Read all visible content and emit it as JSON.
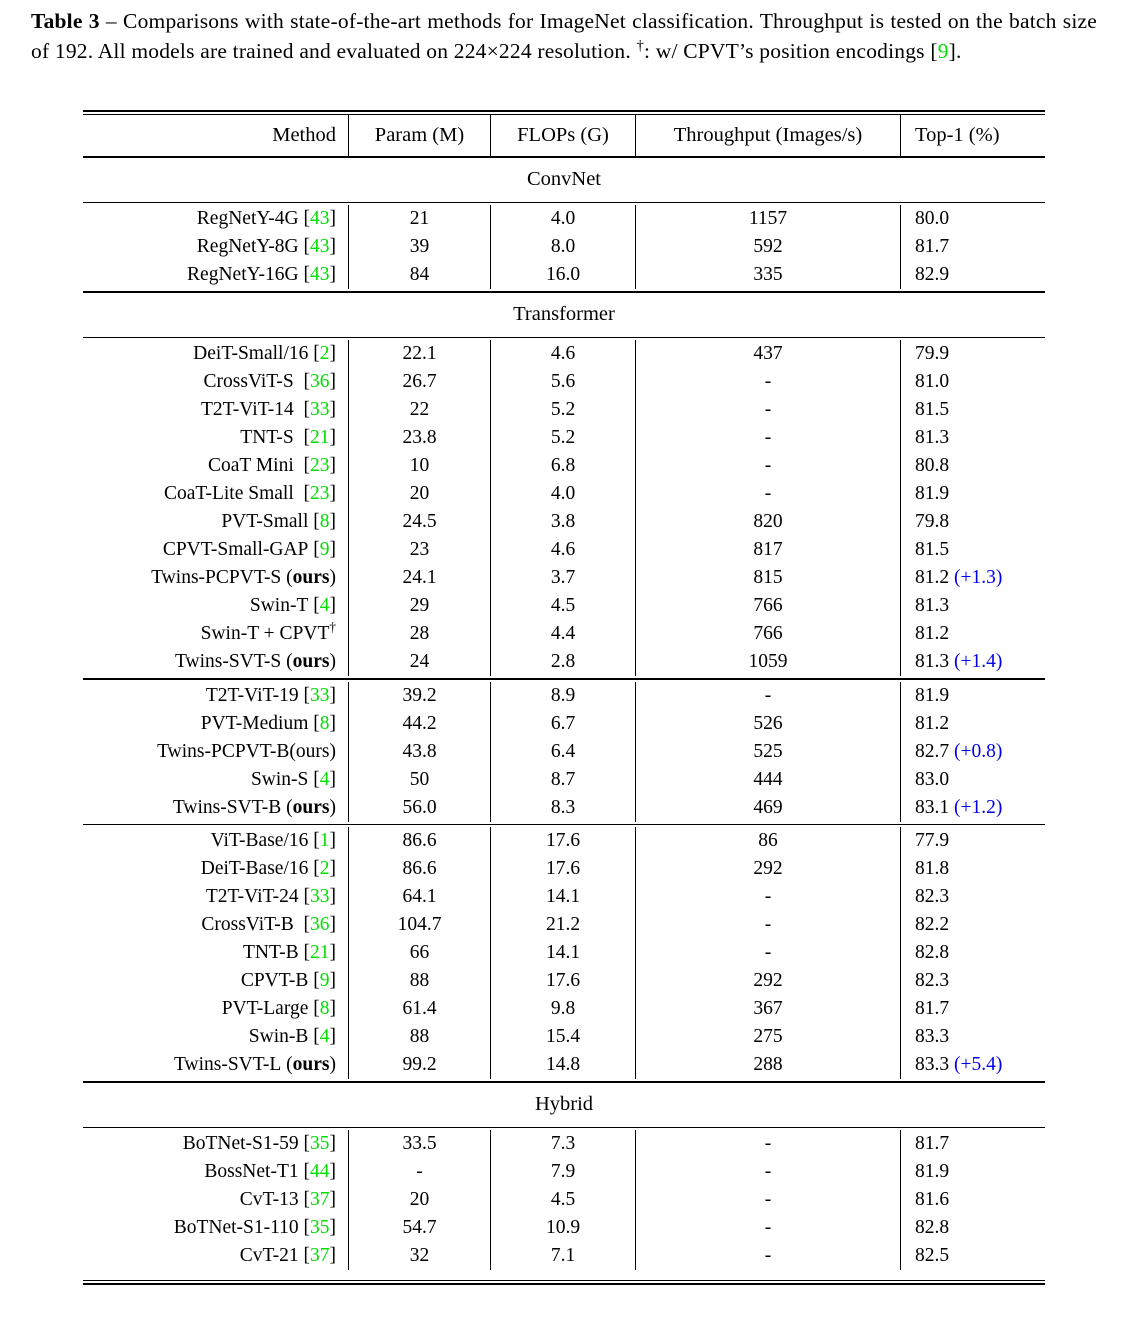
{
  "colors": {
    "link_green": "#00DF00",
    "gain_blue": "#0000F0"
  },
  "caption": {
    "label": "Table 3",
    "body": " – Comparisons with state-of-the-art methods for ImageNet classification. Throughput is tested on the batch size of 192. All models are trained and evaluated on 224×224 resolution. ",
    "dagger": "†",
    "note_pre": ": w/ CPVT’s position encodings [",
    "ref": "9",
    "note_post": "]."
  },
  "table": {
    "headers": [
      "Method",
      "Param (M)",
      "FLOPs (G)",
      "Throughput (Images/s)",
      "Top-1 (%)"
    ],
    "sections": [
      {
        "title": "ConvNet",
        "blocks": [
          [
            {
              "name": "RegNetY-4G",
              "ref": "43",
              "param": "21",
              "flops": "4.0",
              "thr": "1157",
              "top1": "80.0"
            },
            {
              "name": "RegNetY-8G",
              "ref": "43",
              "param": "39",
              "flops": "8.0",
              "thr": "592",
              "top1": "81.7"
            },
            {
              "name": "RegNetY-16G",
              "ref": "43",
              "param": "84",
              "flops": "16.0",
              "thr": "335",
              "top1": "82.9"
            }
          ]
        ]
      },
      {
        "title": "Transformer",
        "blocks": [
          [
            {
              "name": "DeiT-Small/16",
              "ref": "2",
              "param": "22.1",
              "flops": "4.6",
              "thr": "437",
              "top1": "79.9"
            },
            {
              "name": "CrossViT-S",
              "ref": "36",
              "wide": true,
              "param": "26.7",
              "flops": "5.6",
              "thr": "-",
              "top1": "81.0"
            },
            {
              "name": "T2T-ViT-14",
              "ref": "33",
              "wide": true,
              "param": "22",
              "flops": "5.2",
              "thr": "-",
              "top1": "81.5"
            },
            {
              "name": "TNT-S",
              "ref": "21",
              "wide": true,
              "param": "23.8",
              "flops": "5.2",
              "thr": "-",
              "top1": "81.3"
            },
            {
              "name": "CoaT Mini",
              "ref": "23",
              "wide": true,
              "param": "10",
              "flops": "6.8",
              "thr": "-",
              "top1": "80.8"
            },
            {
              "name": "CoaT-Lite Small",
              "ref": "23",
              "wide": true,
              "param": "20",
              "flops": "4.0",
              "thr": "-",
              "top1": "81.9"
            },
            {
              "name": "PVT-Small",
              "ref": "8",
              "param": "24.5",
              "flops": "3.8",
              "thr": "820",
              "top1": "79.8"
            },
            {
              "name": "CPVT-Small-GAP",
              "ref": "9",
              "param": "23",
              "flops": "4.6",
              "thr": "817",
              "top1": "81.5"
            },
            {
              "name": "Twins-PCPVT-S",
              "ours": "bold",
              "param": "24.1",
              "flops": "3.7",
              "thr": "815",
              "top1": "81.2",
              "gain": "+1.3"
            },
            {
              "name": "Swin-T",
              "ref": "4",
              "param": "29",
              "flops": "4.5",
              "thr": "766",
              "top1": "81.3"
            },
            {
              "name": "Swin-T + CPVT",
              "dagger": true,
              "param": "28",
              "flops": "4.4",
              "thr": "766",
              "top1": "81.2"
            },
            {
              "name": "Twins-SVT-S",
              "ours": "bold",
              "param": "24",
              "flops": "2.8",
              "thr": "1059",
              "top1": "81.3",
              "gain": "+1.4"
            }
          ],
          [
            {
              "name": "T2T-ViT-19",
              "ref": "33",
              "param": "39.2",
              "flops": "8.9",
              "thr": "-",
              "top1": "81.9"
            },
            {
              "name": "PVT-Medium",
              "ref": "8",
              "param": "44.2",
              "flops": "6.7",
              "thr": "526",
              "top1": "81.2"
            },
            {
              "name": "Twins-PCPVT-B",
              "ours": "plain",
              "nospace": true,
              "param": "43.8",
              "flops": "6.4",
              "thr": "525",
              "top1": "82.7",
              "gain": "+0.8"
            },
            {
              "name": "Swin-S",
              "ref": "4",
              "param": "50",
              "flops": "8.7",
              "thr": "444",
              "top1": "83.0"
            },
            {
              "name": "Twins-SVT-B",
              "ours": "bold",
              "param": "56.0",
              "flops": "8.3",
              "thr": "469",
              "top1": "83.1",
              "gain": "+1.2"
            }
          ],
          [
            {
              "name": "ViT-Base/16",
              "ref": "1",
              "param": "86.6",
              "flops": "17.6",
              "thr": "86",
              "top1": "77.9"
            },
            {
              "name": "DeiT-Base/16",
              "ref": "2",
              "param": "86.6",
              "flops": "17.6",
              "thr": "292",
              "top1": "81.8"
            },
            {
              "name": "T2T-ViT-24",
              "ref": "33",
              "param": "64.1",
              "flops": "14.1",
              "thr": "-",
              "top1": "82.3"
            },
            {
              "name": "CrossViT-B",
              "ref": "36",
              "wide": true,
              "param": "104.7",
              "flops": "21.2",
              "thr": "-",
              "top1": "82.2"
            },
            {
              "name": "TNT-B",
              "ref": "21",
              "param": "66",
              "flops": "14.1",
              "thr": "-",
              "top1": "82.8"
            },
            {
              "name": "CPVT-B",
              "ref": "9",
              "param": "88",
              "flops": "17.6",
              "thr": "292",
              "top1": "82.3"
            },
            {
              "name": "PVT-Large",
              "ref": "8",
              "param": "61.4",
              "flops": "9.8",
              "thr": "367",
              "top1": "81.7"
            },
            {
              "name": "Swin-B",
              "ref": "4",
              "param": "88",
              "flops": "15.4",
              "thr": "275",
              "top1": "83.3"
            },
            {
              "name": "Twins-SVT-L",
              "ours": "bold",
              "param": "99.2",
              "flops": "14.8",
              "thr": "288",
              "top1": "83.3",
              "gain": "+5.4"
            }
          ]
        ]
      },
      {
        "title": "Hybrid",
        "blocks": [
          [
            {
              "name": "BoTNet-S1-59",
              "ref": "35",
              "param": "33.5",
              "flops": "7.3",
              "thr": "-",
              "top1": "81.7"
            },
            {
              "name": "BossNet-T1",
              "ref": "44",
              "param": "-",
              "flops": "7.9",
              "thr": "-",
              "top1": "81.9"
            },
            {
              "name": "CvT-13",
              "ref": "37",
              "param": "20",
              "flops": "4.5",
              "thr": "-",
              "top1": "81.6"
            },
            {
              "name": "BoTNet-S1-110",
              "ref": "35",
              "param": "54.7",
              "flops": "10.9",
              "thr": "-",
              "top1": "82.8"
            },
            {
              "name": "CvT-21",
              "ref": "37",
              "param": "32",
              "flops": "7.1",
              "thr": "-",
              "top1": "82.5"
            }
          ]
        ]
      }
    ]
  }
}
